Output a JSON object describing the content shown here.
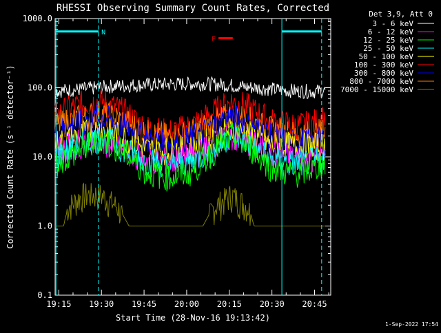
{
  "chart_data": {
    "type": "line",
    "title": "RHESSI Observing Summary Count Rates, Corrected",
    "xlabel": "Start Time (28-Nov-16 19:13:42)",
    "ylabel": "Corrected Count Rate (s⁻¹ detector⁻¹)",
    "x_unit": "minutes after 19:13:42",
    "xlim": [
      0,
      97
    ],
    "ylim": [
      0.1,
      1000
    ],
    "yscale": "log",
    "x_ticks": [
      {
        "x": 1.3,
        "label": "19:15"
      },
      {
        "x": 16.3,
        "label": "19:30"
      },
      {
        "x": 31.3,
        "label": "19:45"
      },
      {
        "x": 46.3,
        "label": "20:00"
      },
      {
        "x": 61.3,
        "label": "20:15"
      },
      {
        "x": 76.3,
        "label": "20:30"
      },
      {
        "x": 91.3,
        "label": "20:45"
      }
    ],
    "y_ticks": [
      {
        "y": 0.1,
        "label": "0.1"
      },
      {
        "y": 1,
        "label": "1.0"
      },
      {
        "y": 10,
        "label": "10.0"
      },
      {
        "y": 100,
        "label": "100.0"
      },
      {
        "y": 1000,
        "label": "1000.0"
      }
    ],
    "legend_title": "Det 3,9, Att 0",
    "legend_position": "top-right, outside plot",
    "series": [
      {
        "name": "3 - 6 keV",
        "color": "#ffffff",
        "x": [
          0,
          10,
          20,
          30,
          40,
          50,
          60,
          70,
          80,
          90,
          95
        ],
        "values": [
          90,
          95,
          105,
          110,
          112,
          115,
          110,
          100,
          92,
          88,
          90
        ]
      },
      {
        "name": "6 - 12 keV",
        "color": "#ff00ff",
        "x": [
          0,
          8,
          16,
          24,
          32,
          40,
          48,
          56,
          62,
          68,
          76,
          84,
          90,
          95
        ],
        "values": [
          12,
          15,
          17,
          12,
          9,
          8.5,
          10,
          15,
          19,
          16,
          11,
          9.5,
          9.5,
          10
        ]
      },
      {
        "name": "12 - 25 keV",
        "color": "#00ff00",
        "x": [
          0,
          8,
          16,
          24,
          32,
          40,
          48,
          56,
          62,
          68,
          76,
          84,
          90,
          95
        ],
        "values": [
          8,
          12,
          18,
          12,
          6,
          5,
          6,
          12,
          20,
          14,
          7,
          5.5,
          6.5,
          8
        ]
      },
      {
        "name": "25 - 50 keV",
        "color": "#00ffff",
        "x": [
          0,
          8,
          16,
          24,
          32,
          40,
          48,
          56,
          62,
          68,
          76,
          84,
          90,
          95
        ],
        "values": [
          10,
          14,
          19,
          13,
          8.5,
          7.5,
          8.5,
          13,
          21,
          15,
          9,
          8,
          8.5,
          9
        ]
      },
      {
        "name": "50 - 100 keV",
        "color": "#ffff00",
        "x": [
          0,
          8,
          16,
          24,
          32,
          40,
          48,
          56,
          62,
          68,
          76,
          84,
          90,
          95
        ],
        "values": [
          15,
          20,
          25,
          19,
          13,
          12,
          13,
          18,
          25,
          21,
          15,
          14,
          14,
          14
        ]
      },
      {
        "name": "100 - 300 keV",
        "color": "#ff0000",
        "x": [
          0,
          8,
          16,
          24,
          32,
          40,
          48,
          56,
          62,
          68,
          76,
          84,
          90,
          95
        ],
        "values": [
          40,
          55,
          65,
          45,
          26,
          22,
          28,
          45,
          62,
          52,
          32,
          28,
          29,
          38
        ]
      },
      {
        "name": "300 - 800 keV",
        "color": "#0000ff",
        "x": [
          0,
          8,
          16,
          24,
          32,
          40,
          48,
          56,
          62,
          68,
          76,
          84,
          90,
          95
        ],
        "values": [
          22,
          30,
          38,
          28,
          18,
          15,
          18,
          27,
          38,
          30,
          19,
          16,
          16,
          18
        ]
      },
      {
        "name": "800 - 7000 keV",
        "color": "#ff8000",
        "x": [
          0,
          8,
          16,
          24,
          32,
          40,
          48,
          56,
          62,
          68,
          76,
          84,
          90,
          95
        ],
        "values": [
          28,
          35,
          42,
          33,
          22,
          19,
          22,
          31,
          40,
          34,
          24,
          21,
          21,
          23
        ]
      },
      {
        "name": "7000 - 15000 keV",
        "color": "#808000",
        "x": [
          0,
          3,
          4.5,
          10,
          16,
          22,
          26,
          28,
          30,
          50,
          52,
          56,
          62,
          68,
          70,
          72,
          95
        ],
        "values": [
          1,
          1,
          2,
          3,
          3,
          2,
          1,
          1,
          1,
          1,
          1,
          2,
          3,
          2,
          1,
          1,
          1
        ]
      }
    ],
    "vertical_lines": [
      {
        "x": 0.3,
        "style": "solid",
        "color": "#00ffff"
      },
      {
        "x": 15.3,
        "style": "dashed",
        "color": "#00ffff"
      },
      {
        "x": 79.8,
        "style": "solid",
        "color": "#00ffff"
      },
      {
        "x": 93.8,
        "style": "dashed",
        "color": "#00ffff"
      }
    ],
    "annotations": [
      {
        "text": "N",
        "color": "#00ffff",
        "bar_x": [
          0.3,
          15.3
        ],
        "y": 650
      },
      {
        "text": "F",
        "color": "#ff0000",
        "bar_x": [
          57.5,
          62.5
        ],
        "y": 520
      },
      {
        "text": "",
        "color": "#00ffff",
        "bar_x": [
          79.8,
          93.8
        ],
        "y": 650
      }
    ]
  },
  "footer": {
    "timestamp": "1-Sep-2022 17:54"
  }
}
